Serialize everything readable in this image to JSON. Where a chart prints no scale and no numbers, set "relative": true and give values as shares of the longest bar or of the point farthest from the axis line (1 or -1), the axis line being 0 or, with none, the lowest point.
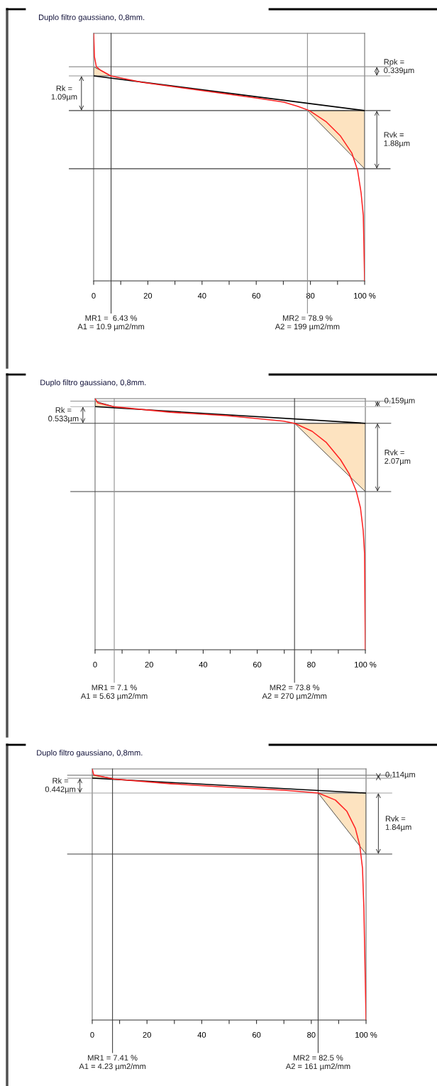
{
  "chart_data": [
    {
      "type": "line",
      "title": "Duplo filtro gaussiano, 0,8mm.",
      "relative": true,
      "xlim": [
        0,
        100
      ],
      "xticks": [
        0,
        {
          "value": 10,
          "label": null
        },
        20,
        {
          "value": 30,
          "label": null
        },
        40,
        {
          "value": 50,
          "label": null
        },
        60,
        {
          "value": 70,
          "label": null
        },
        80,
        {
          "value": 90,
          "label": null
        },
        {
          "value": 100,
          "label": "100 %"
        }
      ],
      "tick_labels": "x",
      "grid": false,
      "legend": false,
      "series": [
        {
          "type": "area",
          "color": "#fde3c0",
          "x": [
            0,
            0,
            6.43
          ],
          "values": [
            0.865,
            0.828,
            0.828
          ]
        },
        {
          "type": "area",
          "color": "#fde3c0",
          "x": [
            78.9,
            100,
            100
          ],
          "values": [
            0.688,
            0.688,
            0.453
          ]
        },
        {
          "color": "#000000",
          "x": [
            0,
            100
          ],
          "values": [
            0.828,
            0.688
          ]
        },
        {
          "color": "#ff2020",
          "x": [
            0,
            0.3,
            1.0,
            2.6,
            6.3,
            17.8,
            38.7,
            59.7,
            70.2,
            75.4,
            79.6,
            85.9,
            91.1,
            95.3,
            97.4,
            98.7,
            99.5,
            99.7,
            100
          ],
          "values": [
            1.0,
            0.905,
            0.865,
            0.851,
            0.828,
            0.802,
            0.771,
            0.739,
            0.722,
            0.705,
            0.688,
            0.642,
            0.585,
            0.516,
            0.447,
            0.355,
            0.264,
            0.16,
            0
          ]
        }
      ],
      "ref_lines": [
        {
          "axis": "y",
          "value": 0.865,
          "color": "#909090"
        },
        {
          "axis": "y",
          "value": 0.828,
          "color": "#909090"
        },
        {
          "axis": "y",
          "value": 0.688,
          "color": "#404040"
        },
        {
          "axis": "y",
          "value": 0.453,
          "color": "#404040"
        },
        {
          "axis": "x",
          "value": 6.43,
          "color": "#404040"
        },
        {
          "axis": "x",
          "value": 78.9,
          "color": "#909090"
        }
      ],
      "annotations": [
        "Rpk =\n0.339µm",
        "Rk =\n1.09µm",
        "Rvk =\n1.88µm",
        "MR1 =  6.43 %\nA1 = 10.9 µm2/mm",
        "MR2 = 78.9 %\nA2 = 199 µm2/mm"
      ]
    },
    {
      "type": "line",
      "title": "Duplo filtro gaussiano, 0,8mm.",
      "relative": true,
      "xlim": [
        0,
        100
      ],
      "xticks": [
        0,
        {
          "value": 10,
          "label": null
        },
        20,
        {
          "value": 30,
          "label": null
        },
        40,
        {
          "value": 50,
          "label": null
        },
        60,
        {
          "value": 70,
          "label": null
        },
        80,
        {
          "value": 90,
          "label": null
        },
        {
          "value": 100,
          "label": "100 %"
        }
      ],
      "tick_labels": "x",
      "grid": false,
      "legend": false,
      "series": [
        {
          "type": "area",
          "color": "#fde3c0",
          "x": [
            0,
            0,
            7.1
          ],
          "values": [
            0.99,
            0.968,
            0.968
          ]
        },
        {
          "type": "area",
          "color": "#fde3c0",
          "x": [
            73.8,
            100,
            100
          ],
          "values": [
            0.902,
            0.902,
            0.63
          ]
        },
        {
          "color": "#000000",
          "x": [
            0,
            100
          ],
          "values": [
            0.968,
            0.902
          ]
        },
        {
          "color": "#ff2020",
          "x": [
            0,
            1.05,
            6.8,
            27.8,
            48.8,
            69.8,
            74.0,
            80.3,
            85.6,
            90.8,
            94.0,
            96.6,
            98.2,
            99.2,
            99.7,
            100
          ],
          "values": [
            1.0,
            0.983,
            0.968,
            0.946,
            0.932,
            0.91,
            0.901,
            0.87,
            0.825,
            0.757,
            0.701,
            0.633,
            0.565,
            0.475,
            0.384,
            0
          ]
        }
      ],
      "ref_lines": [
        {
          "axis": "y",
          "value": 0.99,
          "color": "#909090"
        },
        {
          "axis": "y",
          "value": 0.968,
          "color": "#c0c0c0"
        },
        {
          "axis": "y",
          "value": 0.902,
          "color": "#404040"
        },
        {
          "axis": "y",
          "value": 0.63,
          "color": "#404040"
        },
        {
          "axis": "x",
          "value": 7.1,
          "color": "#909090"
        },
        {
          "axis": "x",
          "value": 73.8,
          "color": "#404040"
        }
      ],
      "annotations": [
        "0.159µm",
        "Rk =\n0.533µm",
        "Rvk =\n2.07µm",
        "MR1 = 7.1 %\nA1 = 5.63 µm2/mm",
        "MR2 = 73.8 %\nA2 = 270 µm2/mm"
      ]
    },
    {
      "type": "line",
      "title": "Duplo filtro gaussiano, 0,8mm.",
      "relative": true,
      "xlim": [
        0,
        100
      ],
      "xticks": [
        0,
        {
          "value": 10,
          "label": null
        },
        20,
        {
          "value": 30,
          "label": null
        },
        40,
        {
          "value": 50,
          "label": null
        },
        60,
        {
          "value": 70,
          "label": null
        },
        80,
        {
          "value": 90,
          "label": null
        },
        {
          "value": 100,
          "label": "100 %"
        }
      ],
      "tick_labels": "x",
      "grid": false,
      "legend": false,
      "series": [
        {
          "type": "area",
          "color": "#fde3c0",
          "x": [
            0,
            0,
            7.41
          ],
          "values": [
            0.975,
            0.963,
            0.963
          ]
        },
        {
          "type": "area",
          "color": "#fde3c0",
          "x": [
            82.5,
            100,
            100
          ],
          "values": [
            0.904,
            0.904,
            0.661
          ]
        },
        {
          "color": "#000000",
          "x": [
            0,
            100
          ],
          "values": [
            0.963,
            0.904
          ]
        },
        {
          "color": "#ff2020",
          "x": [
            0,
            0.52,
            7.8,
            28.6,
            49.4,
            70.1,
            82.6,
            88.8,
            93.0,
            96.1,
            97.7,
            98.7,
            99.2,
            100
          ],
          "values": [
            1.0,
            0.977,
            0.96,
            0.941,
            0.927,
            0.915,
            0.904,
            0.876,
            0.831,
            0.763,
            0.695,
            0.605,
            0.446,
            0
          ]
        }
      ],
      "ref_lines": [
        {
          "axis": "y",
          "value": 0.975,
          "color": "#808080"
        },
        {
          "axis": "y",
          "value": 0.963,
          "color": "#a0a0a0"
        },
        {
          "axis": "y",
          "value": 0.904,
          "color": "#a0a0a0"
        },
        {
          "axis": "y",
          "value": 0.661,
          "color": "#404040"
        },
        {
          "axis": "x",
          "value": 7.41,
          "color": "#404040"
        },
        {
          "axis": "x",
          "value": 82.5,
          "color": "#404040"
        }
      ],
      "annotations": [
        "0.114µm",
        "Rk =\n0.442µm",
        "Rvk =\n1.84µm",
        "MR1 = 7.41 %\nA1 = 4.23 µm2/mm",
        "MR2 = 82.5 %\nA2 = 161 µm2/mm"
      ]
    }
  ]
}
